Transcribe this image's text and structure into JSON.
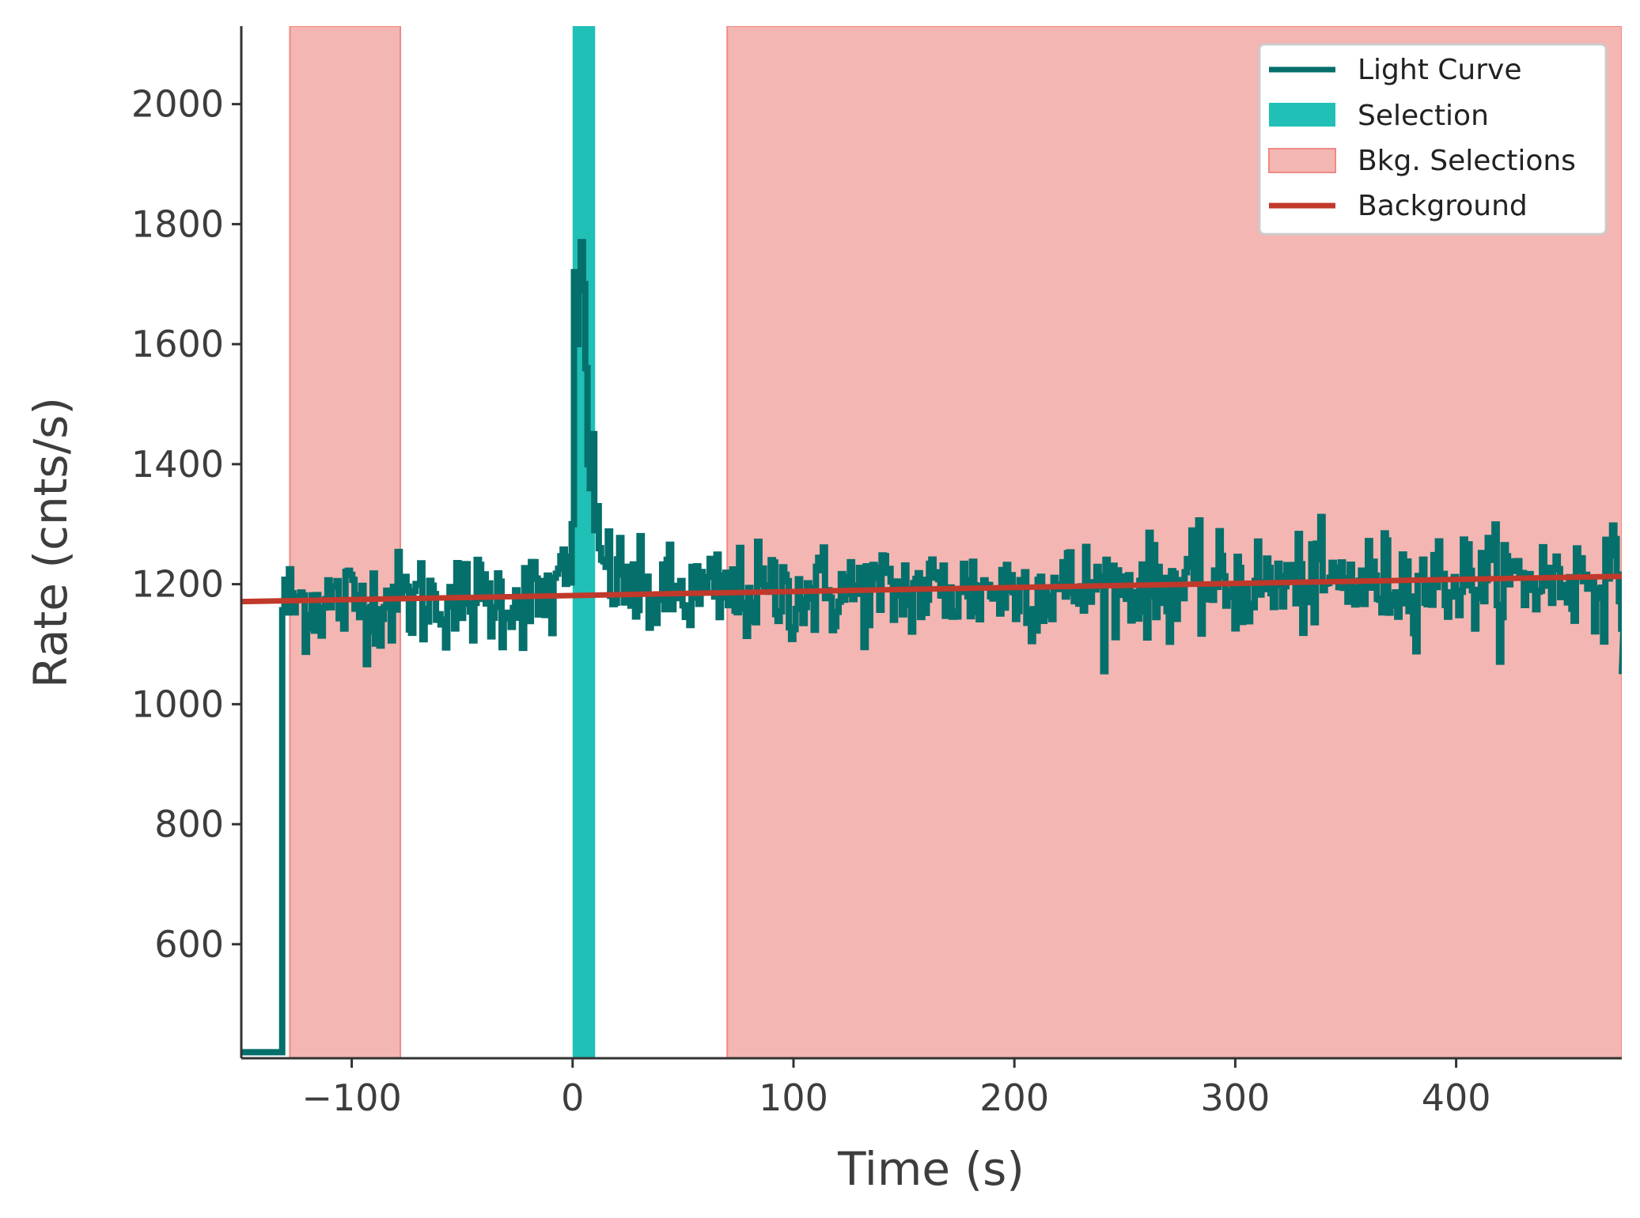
{
  "chart_data": {
    "type": "line",
    "title": "",
    "xlabel": "Time (s)",
    "ylabel": "Rate (cnts/s)",
    "xlim": [
      -150,
      475
    ],
    "ylim": [
      410,
      2130
    ],
    "xticks": [
      -100,
      0,
      100,
      200,
      300,
      400
    ],
    "xtick_labels": [
      "−100",
      "0",
      "100",
      "200",
      "300",
      "400"
    ],
    "yticks": [
      600,
      800,
      1000,
      1200,
      1400,
      1600,
      1800,
      2000
    ],
    "ytick_labels": [
      "600",
      "800",
      "1000",
      "1200",
      "1400",
      "1600",
      "1800",
      "2000"
    ],
    "grid": false,
    "legend_position": "top-right",
    "legend": [
      {
        "label": "Light Curve",
        "kind": "line",
        "color": "#056f6b"
      },
      {
        "label": "Selection",
        "kind": "patch",
        "color": "#20c0b6"
      },
      {
        "label": "Bkg. Selections",
        "kind": "patch",
        "color": "#f4b6b2",
        "edge": "#ee8a84"
      },
      {
        "label": "Background",
        "kind": "line",
        "color": "#c0392b"
      }
    ],
    "light_curve": {
      "name": "Light Curve",
      "color": "#056f6b",
      "bin_width_s": 1.024,
      "t_start": -131.5,
      "t_end": 475,
      "pre_start_rate": 420,
      "mean_rate_intercept": 1178,
      "mean_rate_slope": 0.068,
      "noise_amplitude": 40,
      "peak": [
        {
          "t": 0,
          "rate": 1300
        },
        {
          "t": 1,
          "rate": 1720
        },
        {
          "t": 2,
          "rate": 1600
        },
        {
          "t": 3,
          "rate": 1690
        },
        {
          "t": 4,
          "rate": 1770
        },
        {
          "t": 5,
          "rate": 1700
        },
        {
          "t": 6,
          "rate": 1560
        },
        {
          "t": 7,
          "rate": 1400
        },
        {
          "t": 8,
          "rate": 1360
        },
        {
          "t": 9,
          "rate": 1450
        },
        {
          "t": 10,
          "rate": 1290
        },
        {
          "t": 11,
          "rate": 1330
        },
        {
          "t": 12,
          "rate": 1260
        }
      ]
    },
    "selection": {
      "name": "Selection",
      "x_range": [
        0,
        10.2
      ],
      "color": "#20c0b6"
    },
    "bkg_selections": {
      "name": "Bkg. Selections",
      "color": "#f4b6b2",
      "edge": "#ee8a84",
      "ranges": [
        [
          -128,
          -78
        ],
        [
          70,
          475
        ]
      ]
    },
    "background": {
      "name": "Background",
      "color": "#c0392b",
      "x": [
        -150,
        475
      ],
      "y": [
        1171,
        1213
      ]
    }
  }
}
